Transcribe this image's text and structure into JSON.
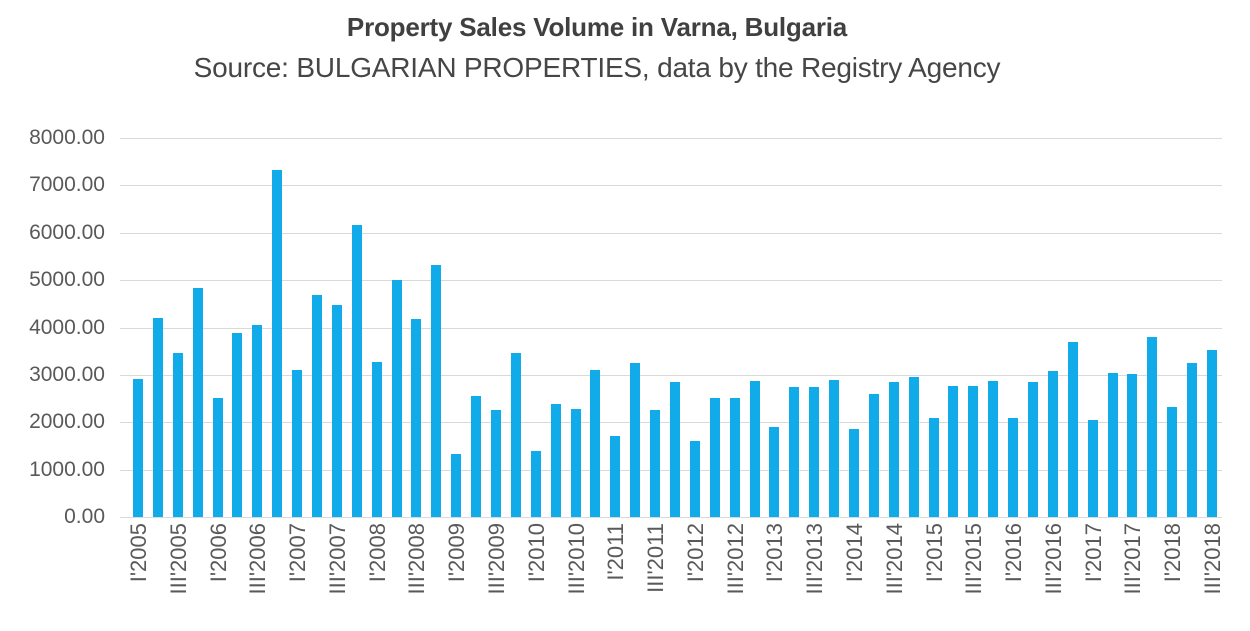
{
  "header": {
    "title": "Property Sales Volume in Varna, Bulgaria",
    "subtitle": "Source: BULGARIAN PROPERTIES, data by the Registry Agency"
  },
  "colors": {
    "bar": "#12abea",
    "gridline": "#d9d9d9",
    "title_text": "#404040",
    "subtitle_text": "#464646",
    "axis_text": "#595959",
    "background": "#ffffff"
  },
  "chart_data": {
    "type": "bar",
    "title": "Property Sales Volume in Varna, Bulgaria",
    "subtitle": "Source: BULGARIAN PROPERTIES, data by the Registry Agency",
    "xlabel": "",
    "ylabel": "",
    "ylim": [
      0,
      8000
    ],
    "ytick_step": 1000,
    "grid": true,
    "legend": "none",
    "y_tick_labels": [
      "8000.00",
      "7000.00",
      "6000.00",
      "5000.00",
      "4000.00",
      "3000.00",
      "2000.00",
      "1000.00",
      "0.00"
    ],
    "x_tick_every": 2,
    "x_tick_labels": [
      "I'2005",
      "III'2005",
      "I'2006",
      "III'2006",
      "I'2007",
      "III'2007",
      "I'2008",
      "III'2008",
      "I'2009",
      "III'2009",
      "I'2010",
      "III'2010",
      "I'2011",
      "III'2011",
      "I'2012",
      "III'2012",
      "I'2013",
      "III'2013",
      "I'2014",
      "III'2014",
      "I'2015",
      "III'2015",
      "I'2016",
      "III'2016",
      "I'2017",
      "III'2017",
      "I'2018",
      "III'2018"
    ],
    "values": [
      2920,
      4200,
      3460,
      4840,
      2520,
      3890,
      4060,
      7320,
      3100,
      4680,
      4480,
      6160,
      3280,
      5010,
      4180,
      5320,
      1330,
      2550,
      2250,
      3470,
      1390,
      2390,
      2280,
      3110,
      1700,
      3250,
      2260,
      2840,
      1610,
      2510,
      2510,
      2880,
      1890,
      2750,
      2750,
      2890,
      1860,
      2600,
      2860,
      2950,
      2080,
      2760,
      2760,
      2880,
      2080,
      2860,
      3090,
      3700,
      2050,
      3050,
      3020,
      3790,
      2330,
      3250,
      3530
    ]
  }
}
